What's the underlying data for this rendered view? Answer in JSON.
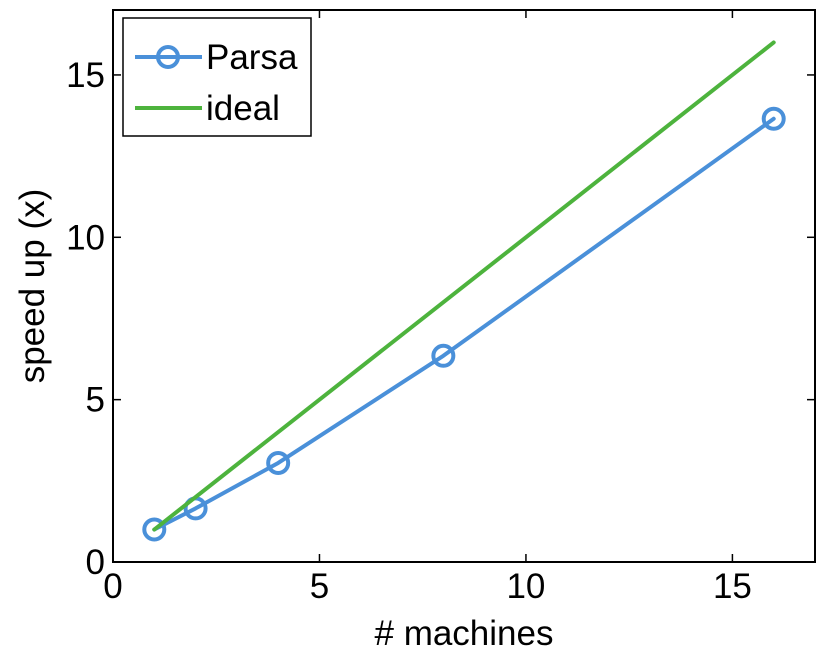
{
  "chart_data": {
    "type": "line",
    "xlabel": "# machines",
    "ylabel": "speed up (x)",
    "xlim": [
      0,
      17
    ],
    "ylim": [
      0,
      17
    ],
    "xticks": [
      0,
      5,
      10,
      15
    ],
    "yticks": [
      0,
      5,
      10,
      15
    ],
    "grid": false,
    "legend_position": "top-left",
    "series": [
      {
        "name": "Parsa",
        "color": "#4a90d9",
        "marker": "circle",
        "x": [
          1,
          2,
          4,
          8,
          16
        ],
        "y": [
          1.0,
          1.65,
          3.05,
          6.35,
          13.65
        ]
      },
      {
        "name": "ideal",
        "color": "#4db33d",
        "marker": "none",
        "x": [
          1,
          16
        ],
        "y": [
          1,
          16
        ]
      }
    ]
  }
}
